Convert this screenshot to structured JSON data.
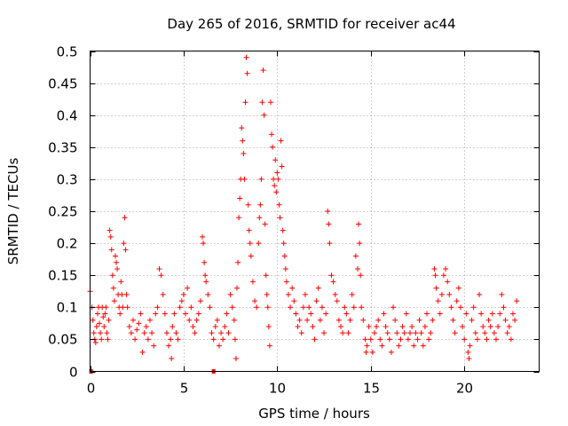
{
  "chart_data": {
    "type": "scatter",
    "title": "Day 265 of 2016, SRMTID for receiver ac44",
    "xlabel": "GPS time / hours",
    "ylabel": "SRMTID / TECUs",
    "xlim": [
      0,
      24
    ],
    "ylim": [
      0,
      0.5
    ],
    "xticks": [
      0,
      5,
      10,
      15,
      20
    ],
    "yticks": [
      0,
      0.05,
      0.1,
      0.15,
      0.2,
      0.25,
      0.3,
      0.35,
      0.4,
      0.45,
      0.5
    ],
    "grid": true,
    "marker": "plus",
    "color": "#ff0000",
    "gap_markers_x": [
      0.05,
      6.6
    ],
    "series": [
      {
        "name": "SRMTID",
        "points": [
          [
            0.0,
            0.125
          ],
          [
            0.1,
            0.1
          ],
          [
            0.15,
            0.08
          ],
          [
            0.2,
            0.06
          ],
          [
            0.25,
            0.05
          ],
          [
            0.3,
            0.045
          ],
          [
            0.35,
            0.07
          ],
          [
            0.4,
            0.09
          ],
          [
            0.45,
            0.1
          ],
          [
            0.5,
            0.075
          ],
          [
            0.55,
            0.06
          ],
          [
            0.6,
            0.05
          ],
          [
            0.65,
            0.1
          ],
          [
            0.7,
            0.085
          ],
          [
            0.75,
            0.07
          ],
          [
            0.8,
            0.09
          ],
          [
            0.85,
            0.1
          ],
          [
            0.9,
            0.06
          ],
          [
            0.95,
            0.05
          ],
          [
            1.0,
            0.08
          ],
          [
            1.05,
            0.22
          ],
          [
            1.1,
            0.21
          ],
          [
            1.15,
            0.19
          ],
          [
            1.2,
            0.15
          ],
          [
            1.25,
            0.13
          ],
          [
            1.3,
            0.11
          ],
          [
            1.35,
            0.18
          ],
          [
            1.4,
            0.17
          ],
          [
            1.45,
            0.16
          ],
          [
            1.5,
            0.12
          ],
          [
            1.55,
            0.1
          ],
          [
            1.6,
            0.09
          ],
          [
            1.65,
            0.14
          ],
          [
            1.7,
            0.12
          ],
          [
            1.75,
            0.1
          ],
          [
            1.8,
            0.2
          ],
          [
            1.85,
            0.24
          ],
          [
            1.9,
            0.19
          ],
          [
            1.95,
            0.12
          ],
          [
            2.0,
            0.1
          ],
          [
            2.1,
            0.07
          ],
          [
            2.2,
            0.06
          ],
          [
            2.3,
            0.08
          ],
          [
            2.4,
            0.05
          ],
          [
            2.5,
            0.065
          ],
          [
            2.6,
            0.075
          ],
          [
            2.7,
            0.09
          ],
          [
            2.8,
            0.03
          ],
          [
            2.9,
            0.06
          ],
          [
            3.0,
            0.07
          ],
          [
            3.1,
            0.05
          ],
          [
            3.2,
            0.08
          ],
          [
            3.3,
            0.06
          ],
          [
            3.4,
            0.04
          ],
          [
            3.5,
            0.09
          ],
          [
            3.6,
            0.1
          ],
          [
            3.7,
            0.16
          ],
          [
            3.8,
            0.15
          ],
          [
            3.9,
            0.12
          ],
          [
            4.0,
            0.09
          ],
          [
            4.1,
            0.06
          ],
          [
            4.2,
            0.04
          ],
          [
            4.3,
            0.05
          ],
          [
            4.35,
            0.02
          ],
          [
            4.4,
            0.07
          ],
          [
            4.5,
            0.09
          ],
          [
            4.6,
            0.06
          ],
          [
            4.7,
            0.05
          ],
          [
            4.8,
            0.1
          ],
          [
            4.9,
            0.11
          ],
          [
            5.0,
            0.12
          ],
          [
            5.1,
            0.09
          ],
          [
            5.2,
            0.13
          ],
          [
            5.3,
            0.08
          ],
          [
            5.4,
            0.1
          ],
          [
            5.5,
            0.07
          ],
          [
            5.6,
            0.06
          ],
          [
            5.7,
            0.08
          ],
          [
            5.8,
            0.09
          ],
          [
            5.9,
            0.11
          ],
          [
            6.0,
            0.21
          ],
          [
            6.05,
            0.2
          ],
          [
            6.1,
            0.17
          ],
          [
            6.15,
            0.15
          ],
          [
            6.2,
            0.14
          ],
          [
            6.3,
            0.12
          ],
          [
            6.4,
            0.1
          ],
          [
            6.5,
            0.06
          ],
          [
            6.6,
            0.05
          ],
          [
            6.7,
            0.07
          ],
          [
            6.8,
            0.08
          ],
          [
            6.9,
            0.04
          ],
          [
            7.0,
            0.06
          ],
          [
            7.1,
            0.05
          ],
          [
            7.2,
            0.07
          ],
          [
            7.3,
            0.09
          ],
          [
            7.4,
            0.06
          ],
          [
            7.5,
            0.12
          ],
          [
            7.6,
            0.1
          ],
          [
            7.7,
            0.08
          ],
          [
            7.75,
            0.05
          ],
          [
            7.8,
            0.02
          ],
          [
            7.85,
            0.13
          ],
          [
            7.9,
            0.17
          ],
          [
            7.95,
            0.24
          ],
          [
            8.0,
            0.27
          ],
          [
            8.05,
            0.3
          ],
          [
            8.1,
            0.38
          ],
          [
            8.15,
            0.36
          ],
          [
            8.2,
            0.34
          ],
          [
            8.25,
            0.3
          ],
          [
            8.3,
            0.42
          ],
          [
            8.35,
            0.49
          ],
          [
            8.4,
            0.465
          ],
          [
            8.45,
            0.26
          ],
          [
            8.5,
            0.22
          ],
          [
            8.55,
            0.2
          ],
          [
            8.6,
            0.18
          ],
          [
            8.7,
            0.14
          ],
          [
            8.8,
            0.11
          ],
          [
            8.9,
            0.1
          ],
          [
            9.0,
            0.2
          ],
          [
            9.05,
            0.24
          ],
          [
            9.1,
            0.26
          ],
          [
            9.15,
            0.3
          ],
          [
            9.2,
            0.42
          ],
          [
            9.25,
            0.47
          ],
          [
            9.3,
            0.4
          ],
          [
            9.35,
            0.23
          ],
          [
            9.4,
            0.15
          ],
          [
            9.45,
            0.12
          ],
          [
            9.5,
            0.1
          ],
          [
            9.55,
            0.07
          ],
          [
            9.6,
            0.04
          ],
          [
            9.65,
            0.42
          ],
          [
            9.7,
            0.37
          ],
          [
            9.75,
            0.35
          ],
          [
            9.8,
            0.3
          ],
          [
            9.85,
            0.29
          ],
          [
            9.9,
            0.33
          ],
          [
            9.95,
            0.28
          ],
          [
            10.0,
            0.31
          ],
          [
            10.05,
            0.3
          ],
          [
            10.1,
            0.26
          ],
          [
            10.15,
            0.24
          ],
          [
            10.2,
            0.36
          ],
          [
            10.25,
            0.32
          ],
          [
            10.3,
            0.22
          ],
          [
            10.35,
            0.2
          ],
          [
            10.4,
            0.18
          ],
          [
            10.45,
            0.16
          ],
          [
            10.5,
            0.14
          ],
          [
            10.6,
            0.12
          ],
          [
            10.7,
            0.1
          ],
          [
            10.8,
            0.13
          ],
          [
            10.9,
            0.11
          ],
          [
            11.0,
            0.09
          ],
          [
            11.1,
            0.07
          ],
          [
            11.2,
            0.08
          ],
          [
            11.3,
            0.06
          ],
          [
            11.4,
            0.1
          ],
          [
            11.5,
            0.12
          ],
          [
            11.6,
            0.08
          ],
          [
            11.7,
            0.1
          ],
          [
            11.8,
            0.09
          ],
          [
            11.9,
            0.07
          ],
          [
            12.0,
            0.05
          ],
          [
            12.1,
            0.11
          ],
          [
            12.2,
            0.13
          ],
          [
            12.3,
            0.08
          ],
          [
            12.4,
            0.1
          ],
          [
            12.5,
            0.06
          ],
          [
            12.6,
            0.09
          ],
          [
            12.7,
            0.25
          ],
          [
            12.75,
            0.23
          ],
          [
            12.8,
            0.2
          ],
          [
            12.9,
            0.15
          ],
          [
            13.0,
            0.14
          ],
          [
            13.1,
            0.12
          ],
          [
            13.2,
            0.11
          ],
          [
            13.3,
            0.08
          ],
          [
            13.4,
            0.07
          ],
          [
            13.5,
            0.06
          ],
          [
            13.6,
            0.1
          ],
          [
            13.7,
            0.09
          ],
          [
            13.8,
            0.06
          ],
          [
            13.9,
            0.08
          ],
          [
            14.0,
            0.12
          ],
          [
            14.1,
            0.1
          ],
          [
            14.2,
            0.18
          ],
          [
            14.3,
            0.16
          ],
          [
            14.35,
            0.23
          ],
          [
            14.4,
            0.2
          ],
          [
            14.45,
            0.15
          ],
          [
            14.5,
            0.1
          ],
          [
            14.6,
            0.08
          ],
          [
            14.7,
            0.05
          ],
          [
            14.75,
            0.03
          ],
          [
            14.8,
            0.04
          ],
          [
            14.9,
            0.07
          ],
          [
            15.0,
            0.05
          ],
          [
            15.1,
            0.03
          ],
          [
            15.2,
            0.06
          ],
          [
            15.3,
            0.07
          ],
          [
            15.4,
            0.08
          ],
          [
            15.5,
            0.05
          ],
          [
            15.6,
            0.04
          ],
          [
            15.7,
            0.09
          ],
          [
            15.8,
            0.07
          ],
          [
            15.9,
            0.06
          ],
          [
            16.0,
            0.05
          ],
          [
            16.1,
            0.03
          ],
          [
            16.2,
            0.1
          ],
          [
            16.3,
            0.08
          ],
          [
            16.4,
            0.06
          ],
          [
            16.5,
            0.04
          ],
          [
            16.6,
            0.05
          ],
          [
            16.7,
            0.07
          ],
          [
            16.8,
            0.06
          ],
          [
            16.9,
            0.09
          ],
          [
            17.0,
            0.05
          ],
          [
            17.1,
            0.06
          ],
          [
            17.2,
            0.07
          ],
          [
            17.3,
            0.04
          ],
          [
            17.4,
            0.06
          ],
          [
            17.5,
            0.05
          ],
          [
            17.6,
            0.08
          ],
          [
            17.7,
            0.06
          ],
          [
            17.8,
            0.04
          ],
          [
            17.9,
            0.07
          ],
          [
            18.0,
            0.09
          ],
          [
            18.1,
            0.05
          ],
          [
            18.2,
            0.06
          ],
          [
            18.3,
            0.08
          ],
          [
            18.4,
            0.16
          ],
          [
            18.45,
            0.15
          ],
          [
            18.5,
            0.13
          ],
          [
            18.6,
            0.11
          ],
          [
            18.7,
            0.09
          ],
          [
            18.8,
            0.12
          ],
          [
            18.9,
            0.15
          ],
          [
            19.0,
            0.16
          ],
          [
            19.1,
            0.14
          ],
          [
            19.2,
            0.12
          ],
          [
            19.3,
            0.1
          ],
          [
            19.4,
            0.08
          ],
          [
            19.5,
            0.06
          ],
          [
            19.6,
            0.11
          ],
          [
            19.7,
            0.13
          ],
          [
            19.8,
            0.1
          ],
          [
            19.9,
            0.07
          ],
          [
            20.0,
            0.05
          ],
          [
            20.1,
            0.09
          ],
          [
            20.2,
            0.03
          ],
          [
            20.25,
            0.02
          ],
          [
            20.3,
            0.04
          ],
          [
            20.4,
            0.08
          ],
          [
            20.5,
            0.1
          ],
          [
            20.6,
            0.06
          ],
          [
            20.7,
            0.05
          ],
          [
            20.8,
            0.12
          ],
          [
            20.9,
            0.09
          ],
          [
            21.0,
            0.07
          ],
          [
            21.1,
            0.06
          ],
          [
            21.2,
            0.05
          ],
          [
            21.3,
            0.08
          ],
          [
            21.4,
            0.07
          ],
          [
            21.5,
            0.09
          ],
          [
            21.6,
            0.06
          ],
          [
            21.7,
            0.05
          ],
          [
            21.8,
            0.07
          ],
          [
            21.9,
            0.09
          ],
          [
            22.0,
            0.12
          ],
          [
            22.1,
            0.1
          ],
          [
            22.2,
            0.08
          ],
          [
            22.3,
            0.06
          ],
          [
            22.4,
            0.07
          ],
          [
            22.5,
            0.05
          ],
          [
            22.6,
            0.09
          ],
          [
            22.7,
            0.08
          ],
          [
            22.8,
            0.11
          ]
        ]
      }
    ]
  }
}
